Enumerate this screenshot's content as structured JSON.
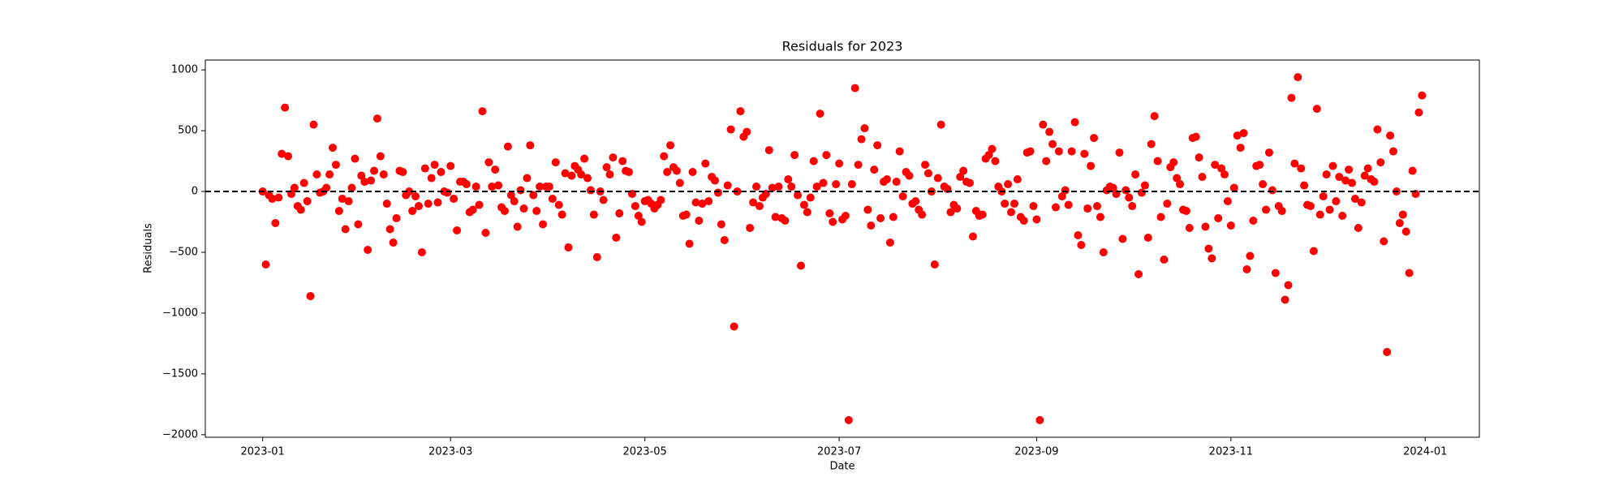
{
  "chart_data": {
    "type": "scatter",
    "title": "Residuals for 2023",
    "x_label": "Date",
    "y_label": "Residuals",
    "xlim": [
      "2022-12-14",
      "2024-01-18"
    ],
    "xticks": [
      {
        "value": "2023-01-01",
        "label": "2023-01"
      },
      {
        "value": "2023-03-01",
        "label": "2023-03"
      },
      {
        "value": "2023-05-01",
        "label": "2023-05"
      },
      {
        "value": "2023-07-01",
        "label": "2023-07"
      },
      {
        "value": "2023-09-01",
        "label": "2023-09"
      },
      {
        "value": "2023-11-01",
        "label": "2023-11"
      },
      {
        "value": "2024-01-01",
        "label": "2024-01"
      }
    ],
    "ylim": [
      -2021,
      1081
    ],
    "yticks": [
      {
        "value": -2000,
        "label": "−2000"
      },
      {
        "value": -1500,
        "label": "−1500"
      },
      {
        "value": -1000,
        "label": "−1000"
      },
      {
        "value": -500,
        "label": "−500"
      },
      0,
      500,
      1000
    ],
    "reference_line": {
      "y": 0,
      "color": "#000000",
      "style": "dashed"
    },
    "grid": false,
    "series": [
      {
        "color": "#ff0000",
        "x": [
          "2023-01-01",
          "2023-01-02",
          "2023-01-03",
          "2023-01-04",
          "2023-01-05",
          "2023-01-06",
          "2023-01-07",
          "2023-01-08",
          "2023-01-09",
          "2023-01-10",
          "2023-01-11",
          "2023-01-12",
          "2023-01-13",
          "2023-01-14",
          "2023-01-15",
          "2023-01-16",
          "2023-01-17",
          "2023-01-18",
          "2023-01-19",
          "2023-01-20",
          "2023-01-21",
          "2023-01-22",
          "2023-01-23",
          "2023-01-24",
          "2023-01-25",
          "2023-01-26",
          "2023-01-27",
          "2023-01-28",
          "2023-01-29",
          "2023-01-30",
          "2023-01-31",
          "2023-02-01",
          "2023-02-02",
          "2023-02-03",
          "2023-02-04",
          "2023-02-05",
          "2023-02-06",
          "2023-02-07",
          "2023-02-08",
          "2023-02-09",
          "2023-02-10",
          "2023-02-11",
          "2023-02-12",
          "2023-02-13",
          "2023-02-14",
          "2023-02-15",
          "2023-02-16",
          "2023-02-17",
          "2023-02-18",
          "2023-02-19",
          "2023-02-20",
          "2023-02-21",
          "2023-02-22",
          "2023-02-23",
          "2023-02-24",
          "2023-02-25",
          "2023-02-26",
          "2023-02-27",
          "2023-02-28",
          "2023-03-01",
          "2023-03-02",
          "2023-03-03",
          "2023-03-04",
          "2023-03-05",
          "2023-03-06",
          "2023-03-07",
          "2023-03-08",
          "2023-03-09",
          "2023-03-10",
          "2023-03-11",
          "2023-03-12",
          "2023-03-13",
          "2023-03-14",
          "2023-03-15",
          "2023-03-16",
          "2023-03-17",
          "2023-03-18",
          "2023-03-19",
          "2023-03-20",
          "2023-03-21",
          "2023-03-22",
          "2023-03-23",
          "2023-03-24",
          "2023-03-25",
          "2023-03-26",
          "2023-03-27",
          "2023-03-28",
          "2023-03-29",
          "2023-03-30",
          "2023-03-31",
          "2023-04-01",
          "2023-04-02",
          "2023-04-03",
          "2023-04-04",
          "2023-04-05",
          "2023-04-06",
          "2023-04-07",
          "2023-04-08",
          "2023-04-09",
          "2023-04-10",
          "2023-04-11",
          "2023-04-12",
          "2023-04-13",
          "2023-04-14",
          "2023-04-15",
          "2023-04-16",
          "2023-04-17",
          "2023-04-18",
          "2023-04-19",
          "2023-04-20",
          "2023-04-21",
          "2023-04-22",
          "2023-04-23",
          "2023-04-24",
          "2023-04-25",
          "2023-04-26",
          "2023-04-27",
          "2023-04-28",
          "2023-04-29",
          "2023-04-30",
          "2023-05-01",
          "2023-05-02",
          "2023-05-03",
          "2023-05-04",
          "2023-05-05",
          "2023-05-06",
          "2023-05-07",
          "2023-05-08",
          "2023-05-09",
          "2023-05-10",
          "2023-05-11",
          "2023-05-12",
          "2023-05-13",
          "2023-05-14",
          "2023-05-15",
          "2023-05-16",
          "2023-05-17",
          "2023-05-18",
          "2023-05-19",
          "2023-05-20",
          "2023-05-21",
          "2023-05-22",
          "2023-05-23",
          "2023-05-24",
          "2023-05-25",
          "2023-05-26",
          "2023-05-27",
          "2023-05-28",
          "2023-05-29",
          "2023-05-30",
          "2023-05-31",
          "2023-06-01",
          "2023-06-02",
          "2023-06-03",
          "2023-06-04",
          "2023-06-05",
          "2023-06-06",
          "2023-06-07",
          "2023-06-08",
          "2023-06-09",
          "2023-06-10",
          "2023-06-11",
          "2023-06-12",
          "2023-06-13",
          "2023-06-14",
          "2023-06-15",
          "2023-06-16",
          "2023-06-17",
          "2023-06-18",
          "2023-06-19",
          "2023-06-20",
          "2023-06-21",
          "2023-06-22",
          "2023-06-23",
          "2023-06-24",
          "2023-06-25",
          "2023-06-26",
          "2023-06-27",
          "2023-06-28",
          "2023-06-29",
          "2023-06-30",
          "2023-07-01",
          "2023-07-02",
          "2023-07-03",
          "2023-07-04",
          "2023-07-05",
          "2023-07-06",
          "2023-07-07",
          "2023-07-08",
          "2023-07-09",
          "2023-07-10",
          "2023-07-11",
          "2023-07-12",
          "2023-07-13",
          "2023-07-14",
          "2023-07-15",
          "2023-07-16",
          "2023-07-17",
          "2023-07-18",
          "2023-07-19",
          "2023-07-20",
          "2023-07-21",
          "2023-07-22",
          "2023-07-23",
          "2023-07-24",
          "2023-07-25",
          "2023-07-26",
          "2023-07-27",
          "2023-07-28",
          "2023-07-29",
          "2023-07-30",
          "2023-07-31",
          "2023-08-01",
          "2023-08-02",
          "2023-08-03",
          "2023-08-04",
          "2023-08-05",
          "2023-08-06",
          "2023-08-07",
          "2023-08-08",
          "2023-08-09",
          "2023-08-10",
          "2023-08-11",
          "2023-08-12",
          "2023-08-13",
          "2023-08-14",
          "2023-08-15",
          "2023-08-16",
          "2023-08-17",
          "2023-08-18",
          "2023-08-19",
          "2023-08-20",
          "2023-08-21",
          "2023-08-22",
          "2023-08-23",
          "2023-08-24",
          "2023-08-25",
          "2023-08-26",
          "2023-08-27",
          "2023-08-28",
          "2023-08-29",
          "2023-08-30",
          "2023-08-31",
          "2023-09-01",
          "2023-09-02",
          "2023-09-03",
          "2023-09-04",
          "2023-09-05",
          "2023-09-06",
          "2023-09-07",
          "2023-09-08",
          "2023-09-09",
          "2023-09-10",
          "2023-09-11",
          "2023-09-12",
          "2023-09-13",
          "2023-09-14",
          "2023-09-15",
          "2023-09-16",
          "2023-09-17",
          "2023-09-18",
          "2023-09-19",
          "2023-09-20",
          "2023-09-21",
          "2023-09-22",
          "2023-09-23",
          "2023-09-24",
          "2023-09-25",
          "2023-09-26",
          "2023-09-27",
          "2023-09-28",
          "2023-09-29",
          "2023-09-30",
          "2023-10-01",
          "2023-10-02",
          "2023-10-03",
          "2023-10-04",
          "2023-10-05",
          "2023-10-06",
          "2023-10-07",
          "2023-10-08",
          "2023-10-09",
          "2023-10-10",
          "2023-10-11",
          "2023-10-12",
          "2023-10-13",
          "2023-10-14",
          "2023-10-15",
          "2023-10-16",
          "2023-10-17",
          "2023-10-18",
          "2023-10-19",
          "2023-10-20",
          "2023-10-21",
          "2023-10-22",
          "2023-10-23",
          "2023-10-24",
          "2023-10-25",
          "2023-10-26",
          "2023-10-27",
          "2023-10-28",
          "2023-10-29",
          "2023-10-30",
          "2023-10-31",
          "2023-11-01",
          "2023-11-02",
          "2023-11-03",
          "2023-11-04",
          "2023-11-05",
          "2023-11-06",
          "2023-11-07",
          "2023-11-08",
          "2023-11-09",
          "2023-11-10",
          "2023-11-11",
          "2023-11-12",
          "2023-11-13",
          "2023-11-14",
          "2023-11-15",
          "2023-11-16",
          "2023-11-17",
          "2023-11-18",
          "2023-11-19",
          "2023-11-20",
          "2023-11-21",
          "2023-11-22",
          "2023-11-23",
          "2023-11-24",
          "2023-11-25",
          "2023-11-26",
          "2023-11-27",
          "2023-11-28",
          "2023-11-29",
          "2023-11-30",
          "2023-12-01",
          "2023-12-02",
          "2023-12-03",
          "2023-12-04",
          "2023-12-05",
          "2023-12-06",
          "2023-12-07",
          "2023-12-08",
          "2023-12-09",
          "2023-12-10",
          "2023-12-11",
          "2023-12-12",
          "2023-12-13",
          "2023-12-14",
          "2023-12-15",
          "2023-12-16",
          "2023-12-17",
          "2023-12-18",
          "2023-12-19",
          "2023-12-20",
          "2023-12-21",
          "2023-12-22",
          "2023-12-23",
          "2023-12-24",
          "2023-12-25",
          "2023-12-26",
          "2023-12-27",
          "2023-12-28",
          "2023-12-29",
          "2023-12-30",
          "2023-12-31"
        ],
        "values": [
          0,
          -600,
          -30,
          -60,
          -260,
          -50,
          310,
          690,
          290,
          -20,
          30,
          -120,
          -150,
          70,
          -80,
          -860,
          550,
          140,
          -10,
          0,
          30,
          140,
          360,
          220,
          -160,
          -60,
          -310,
          -80,
          30,
          270,
          -270,
          130,
          80,
          -480,
          90,
          170,
          600,
          290,
          140,
          -100,
          -310,
          -420,
          -220,
          170,
          160,
          -30,
          0,
          -160,
          -40,
          -120,
          -500,
          190,
          -100,
          110,
          220,
          -90,
          160,
          0,
          -10,
          210,
          -60,
          -320,
          80,
          80,
          60,
          -170,
          -150,
          40,
          -110,
          660,
          -340,
          240,
          40,
          180,
          50,
          -130,
          -160,
          370,
          -30,
          -80,
          -290,
          10,
          -140,
          110,
          380,
          -30,
          -160,
          40,
          -270,
          40,
          40,
          -60,
          240,
          -110,
          -190,
          150,
          -460,
          130,
          210,
          180,
          140,
          270,
          110,
          10,
          -190,
          -540,
          0,
          -70,
          200,
          140,
          280,
          -380,
          -180,
          250,
          170,
          160,
          -20,
          -120,
          -200,
          -250,
          -80,
          -70,
          -100,
          -140,
          -110,
          -70,
          290,
          160,
          380,
          200,
          170,
          70,
          -200,
          -190,
          -430,
          160,
          -90,
          -240,
          -100,
          230,
          -80,
          120,
          90,
          -10,
          -270,
          -400,
          50,
          510,
          -1110,
          0,
          660,
          450,
          490,
          -300,
          -90,
          40,
          -120,
          -50,
          -20,
          340,
          30,
          -210,
          40,
          -220,
          -240,
          100,
          40,
          300,
          -30,
          -610,
          -110,
          -170,
          -50,
          250,
          40,
          640,
          70,
          300,
          -180,
          -250,
          60,
          230,
          -230,
          -200,
          -1880,
          60,
          850,
          220,
          430,
          520,
          -150,
          -280,
          180,
          380,
          -220,
          80,
          100,
          -420,
          -210,
          80,
          330,
          -40,
          160,
          130,
          -100,
          -80,
          -150,
          -190,
          220,
          150,
          0,
          -600,
          110,
          550,
          40,
          20,
          -170,
          -110,
          -140,
          120,
          170,
          80,
          70,
          -370,
          -160,
          -200,
          -190,
          270,
          300,
          350,
          250,
          40,
          0,
          -100,
          60,
          -170,
          -100,
          100,
          -210,
          -240,
          320,
          330,
          -120,
          -230,
          -1880,
          550,
          250,
          490,
          390,
          -130,
          330,
          -40,
          10,
          -110,
          330,
          570,
          -360,
          -440,
          310,
          -140,
          210,
          440,
          -120,
          -210,
          -500,
          10,
          40,
          30,
          -20,
          320,
          -390,
          10,
          -50,
          -120,
          140,
          -680,
          -10,
          50,
          -380,
          390,
          620,
          250,
          -210,
          -560,
          -100,
          200,
          240,
          110,
          60,
          -150,
          -160,
          -300,
          440,
          450,
          280,
          120,
          -290,
          -470,
          -550,
          220,
          -220,
          190,
          140,
          -80,
          -280,
          30,
          460,
          360,
          480,
          -640,
          -530,
          -240,
          210,
          220,
          60,
          -150,
          320,
          10,
          -670,
          -120,
          -160,
          -890,
          -770,
          770,
          230,
          940,
          190,
          50,
          -110,
          -120,
          -490,
          680,
          -190,
          -40,
          140,
          -150,
          210,
          -80,
          120,
          -200,
          90,
          180,
          70,
          -60,
          -300,
          -90,
          130,
          190,
          100,
          80,
          510,
          240,
          -410,
          -1320,
          460,
          330,
          0,
          -260,
          -190,
          -330,
          -670,
          170,
          -20,
          650,
          790
        ]
      }
    ]
  }
}
